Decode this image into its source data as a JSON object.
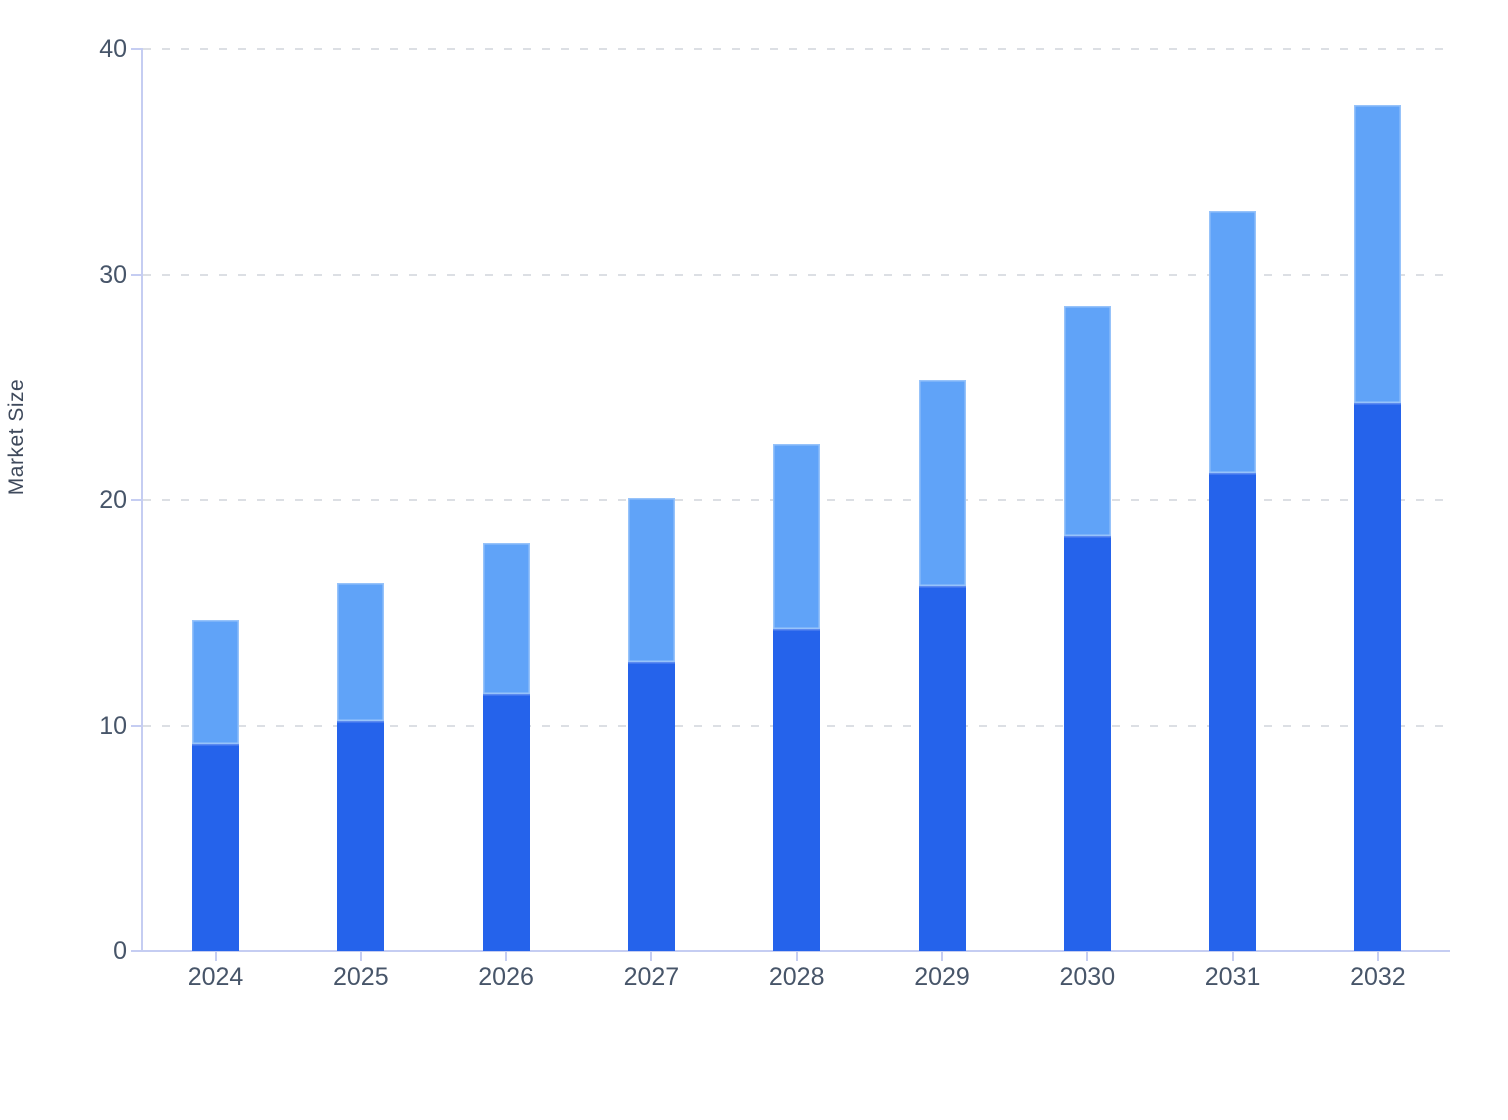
{
  "chart_data": {
    "type": "bar",
    "stacked": true,
    "title": "",
    "xlabel": "",
    "ylabel": "Market Size",
    "ylim": [
      0,
      40
    ],
    "yticks": [
      "0",
      "10",
      "20",
      "30",
      "40"
    ],
    "categories": [
      "2024",
      "2025",
      "2026",
      "2027",
      "2028",
      "2029",
      "2030",
      "2031",
      "2032"
    ],
    "series": [
      {
        "id": "bottom-segment",
        "color": "#2563eb",
        "values": [
          9.2,
          10.2,
          11.4,
          12.8,
          14.3,
          16.2,
          18.4,
          21.2,
          24.3
        ]
      },
      {
        "id": "top-segment",
        "color": "#60a3f8",
        "values": [
          5.5,
          6.1,
          6.7,
          7.3,
          8.2,
          9.1,
          10.2,
          11.6,
          13.2
        ]
      }
    ],
    "stack_totals": [
      14.7,
      16.3,
      18.1,
      20.1,
      22.5,
      25.3,
      28.6,
      32.8,
      37.5
    ],
    "legend": "none",
    "grid": "horizontal-dashed"
  },
  "colors": {
    "bottom_segment": "#2563eb",
    "top_segment": "#60a3f8",
    "axis_line": "#c5cdf2",
    "gridline": "#dcdfe4",
    "tick_label": "#475569",
    "axis_title": "#3f4a5c",
    "background": "#ffffff"
  }
}
